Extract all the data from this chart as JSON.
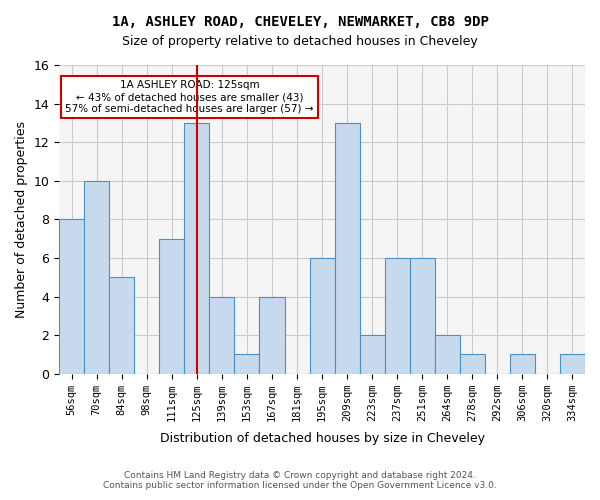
{
  "title_line1": "1A, ASHLEY ROAD, CHEVELEY, NEWMARKET, CB8 9DP",
  "title_line2": "Size of property relative to detached houses in Cheveley",
  "xlabel": "Distribution of detached houses by size in Cheveley",
  "ylabel": "Number of detached properties",
  "footnote1": "Contains HM Land Registry data © Crown copyright and database right 2024.",
  "footnote2": "Contains public sector information licensed under the Open Government Licence v3.0.",
  "annotation_line1": "1A ASHLEY ROAD: 125sqm",
  "annotation_line2": "← 43% of detached houses are smaller (43)",
  "annotation_line3": "57% of semi-detached houses are larger (57) →",
  "property_size": 125,
  "property_size_label": "125sqm",
  "categories": [
    "56sqm",
    "70sqm",
    "84sqm",
    "98sqm",
    "111sqm",
    "125sqm",
    "139sqm",
    "153sqm",
    "167sqm",
    "181sqm",
    "195sqm",
    "209sqm",
    "223sqm",
    "237sqm",
    "251sqm",
    "264sqm",
    "278sqm",
    "292sqm",
    "306sqm",
    "320sqm",
    "334sqm"
  ],
  "values": [
    8,
    10,
    5,
    0,
    7,
    13,
    4,
    1,
    4,
    0,
    6,
    13,
    2,
    6,
    6,
    2,
    1,
    0,
    1,
    0,
    1
  ],
  "bar_color": "#c7d9ed",
  "bar_edge_color": "#4a90c4",
  "highlight_bar_index": 5,
  "vline_color": "#cc0000",
  "annotation_box_color": "#cc0000",
  "ylim": [
    0,
    16
  ],
  "yticks": [
    0,
    2,
    4,
    6,
    8,
    10,
    12,
    14,
    16
  ],
  "grid_color": "#cccccc",
  "background_color": "#f5f5f5"
}
